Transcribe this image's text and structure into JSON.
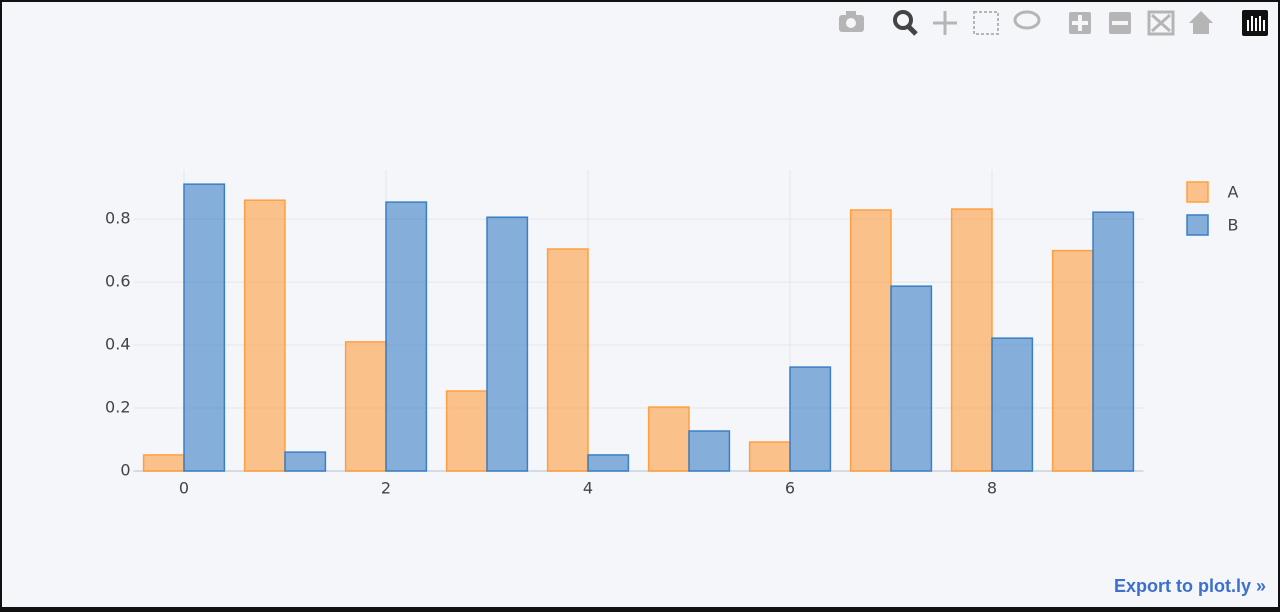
{
  "chart_data": {
    "type": "bar",
    "x": [
      0,
      1,
      2,
      3,
      4,
      5,
      6,
      7,
      8,
      9
    ],
    "series": [
      {
        "name": "A",
        "color": "#ff9f40",
        "values": [
          0.051,
          0.86,
          0.41,
          0.254,
          0.705,
          0.203,
          0.092,
          0.829,
          0.832,
          0.7
        ]
      },
      {
        "name": "B",
        "color": "#3b7fc4",
        "values": [
          0.911,
          0.06,
          0.854,
          0.806,
          0.051,
          0.127,
          0.33,
          0.587,
          0.422,
          0.822
        ]
      }
    ],
    "xlim": [
      -0.5,
      9.5
    ],
    "xticks": [
      0,
      2,
      4,
      6,
      8
    ],
    "ylim": [
      0,
      0.956
    ],
    "yticks": [
      0,
      0.2,
      0.4,
      0.6,
      0.8
    ],
    "grid": true,
    "legend": "top-right"
  },
  "export_link": "Export to plot.ly »"
}
